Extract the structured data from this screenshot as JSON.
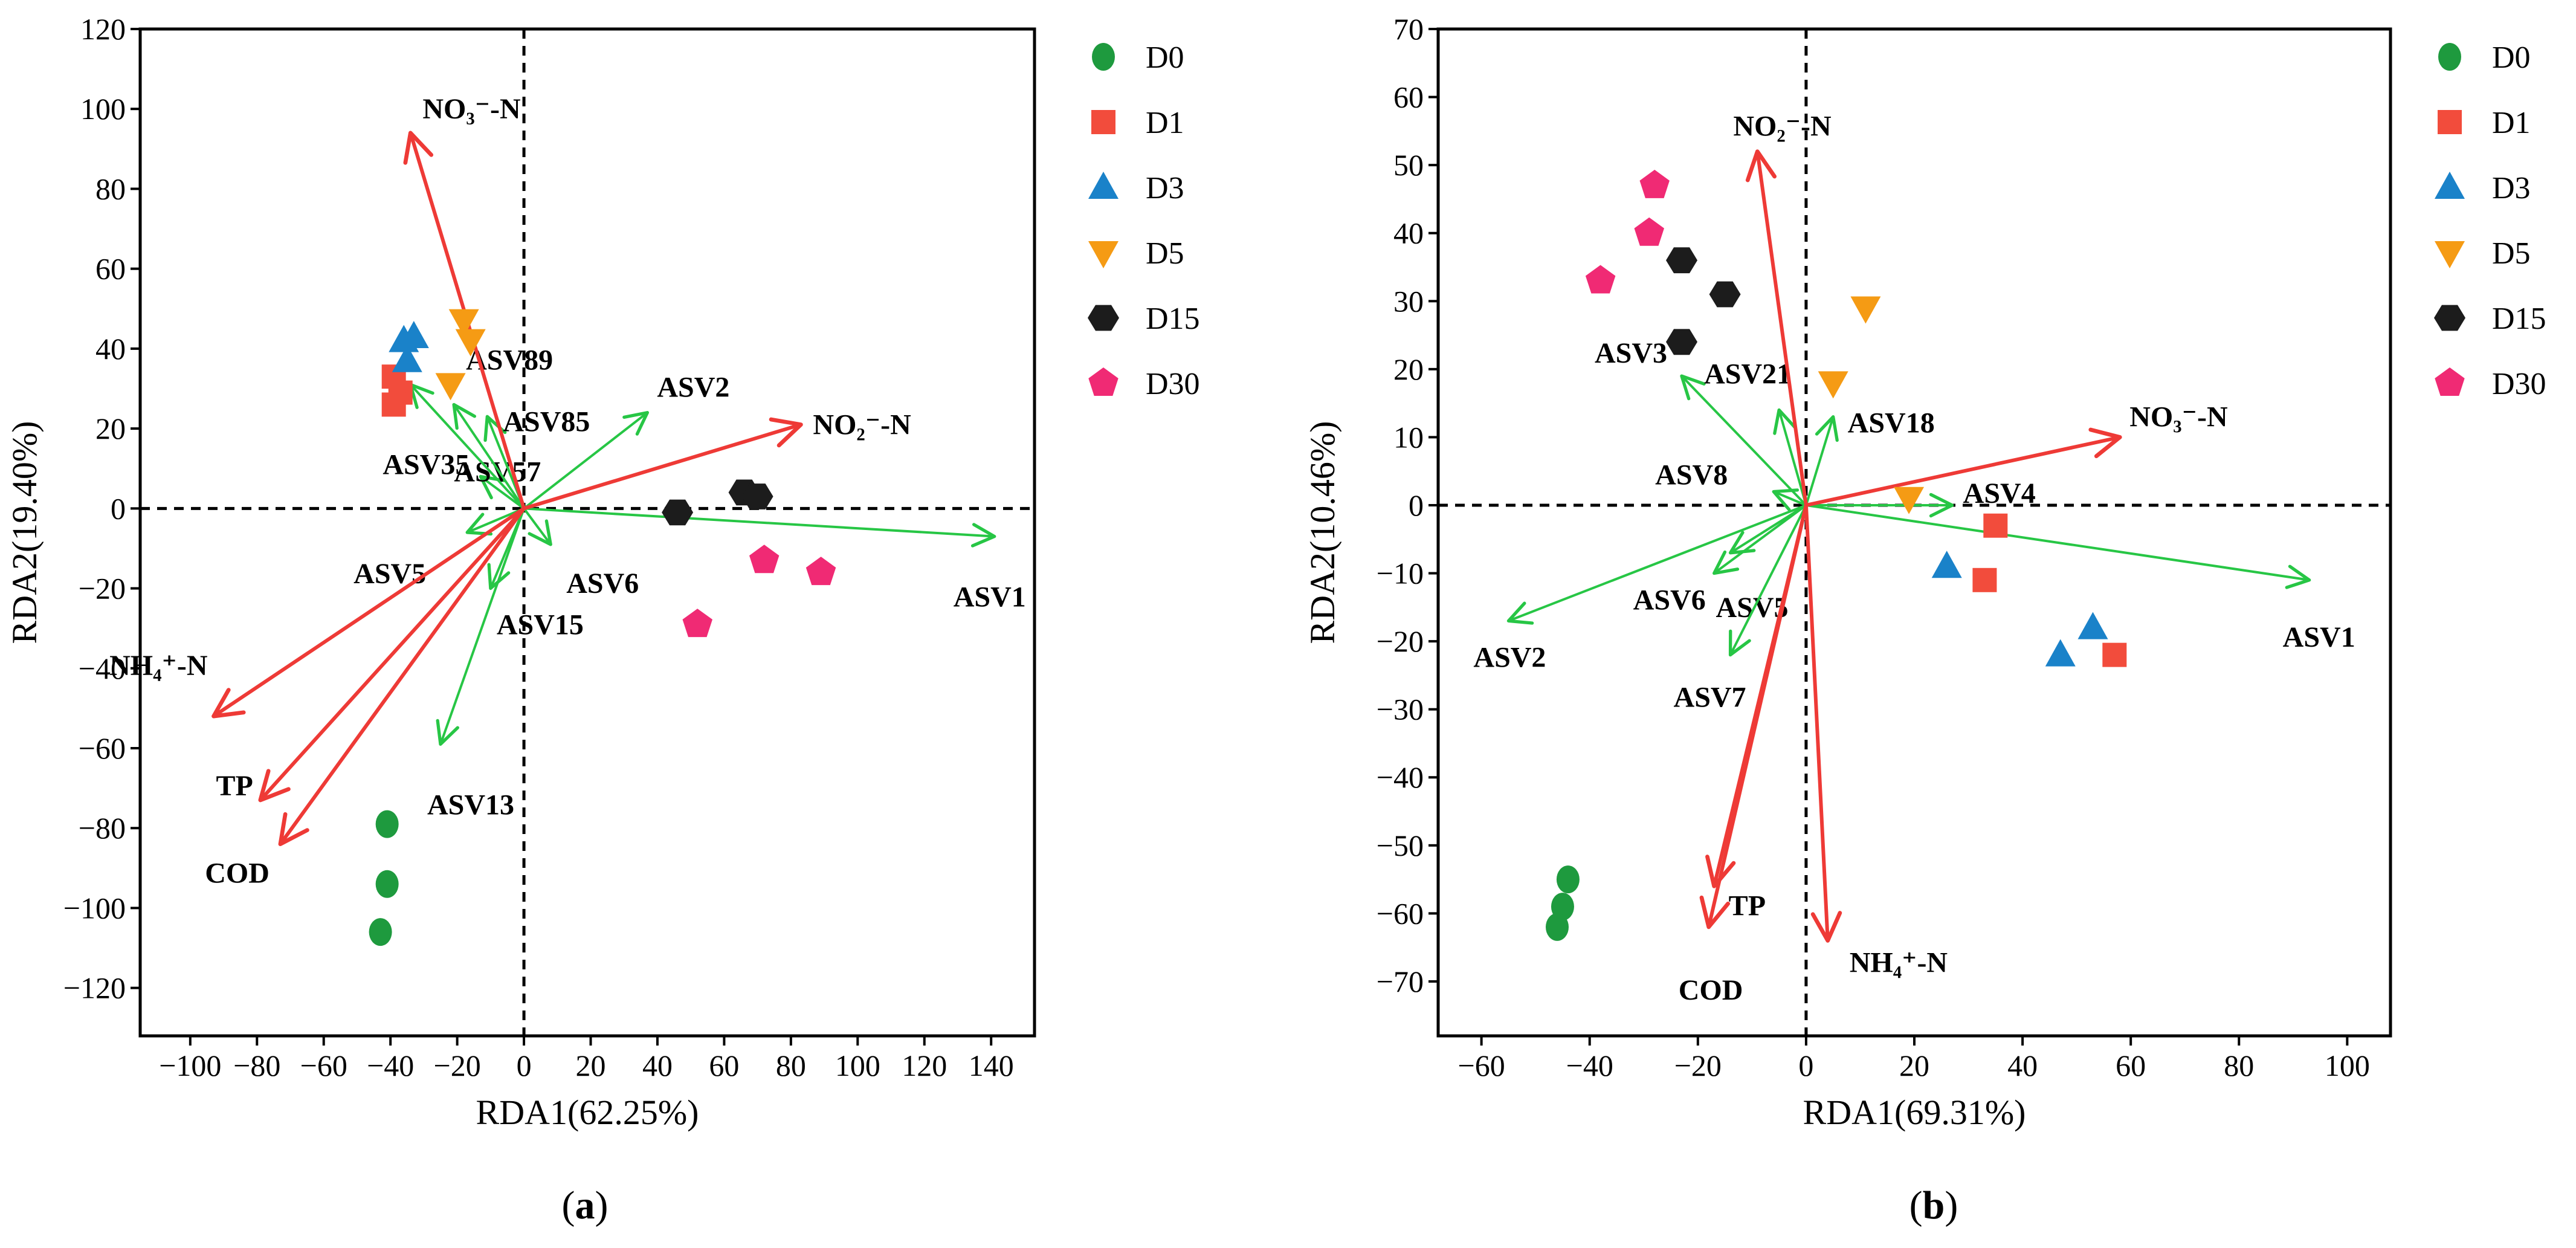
{
  "chart_data": [
    {
      "type": "scatter",
      "subtype": "rda-biplot",
      "panel_label": "(a)",
      "xlabel": "RDA1(62.25%)",
      "ylabel": "RDA2(19.40%)",
      "xlim": [
        -115,
        153
      ],
      "ylim": [
        -132,
        120
      ],
      "xticks": [
        -100,
        -80,
        -60,
        -40,
        -20,
        0,
        20,
        40,
        60,
        80,
        100,
        120,
        140
      ],
      "yticks": [
        -120,
        -100,
        -80,
        -60,
        -40,
        -20,
        0,
        20,
        40,
        60,
        80,
        100,
        120
      ],
      "xtick_labels": [
        "−100",
        "−80",
        "−60",
        "−40",
        "−20",
        "0",
        "20",
        "40",
        "60",
        "80",
        "100",
        "120",
        "140"
      ],
      "ytick_labels": [
        "−120",
        "−100",
        "−80",
        "−60",
        "−40",
        "−20",
        "0",
        "20",
        "40",
        "60",
        "80",
        "100",
        "120"
      ],
      "legend": [
        "D0",
        "D1",
        "D3",
        "D5",
        "D15",
        "D30"
      ],
      "samples": [
        {
          "group": "D0",
          "points": [
            [
              -41,
              -79
            ],
            [
              -41,
              -94
            ],
            [
              -43,
              -106
            ]
          ]
        },
        {
          "group": "D1",
          "points": [
            [
              -39,
              33
            ],
            [
              -37,
              29
            ],
            [
              -39,
              26
            ]
          ]
        },
        {
          "group": "D3",
          "points": [
            [
              -33,
              43
            ],
            [
              -35,
              37
            ],
            [
              -36,
              42
            ]
          ]
        },
        {
          "group": "D5",
          "points": [
            [
              -18,
              47
            ],
            [
              -16,
              42
            ],
            [
              -22,
              31
            ]
          ]
        },
        {
          "group": "D15",
          "points": [
            [
              46,
              -1
            ],
            [
              66,
              4
            ],
            [
              70,
              3
            ]
          ]
        },
        {
          "group": "D30",
          "points": [
            [
              72,
              -13
            ],
            [
              89,
              -16
            ],
            [
              52,
              -29
            ]
          ]
        }
      ],
      "env_vectors": [
        {
          "label": "NO₃⁻-N",
          "x": -34,
          "y": 94
        },
        {
          "label": "NO₂⁻-N",
          "x": 83,
          "y": 21
        },
        {
          "label": "NH₄⁺-N",
          "x": -93,
          "y": -52
        },
        {
          "label": "TP",
          "x": -79,
          "y": -73
        },
        {
          "label": "COD",
          "x": -73,
          "y": -84
        }
      ],
      "species_vectors": [
        {
          "label": "ASV1",
          "x": 141,
          "y": -7
        },
        {
          "label": "ASV2",
          "x": 37,
          "y": 24
        },
        {
          "label": "ASV6",
          "x": 8,
          "y": -9
        },
        {
          "label": "ASV15",
          "x": -10,
          "y": -20
        },
        {
          "label": "ASV13",
          "x": -25,
          "y": -59
        },
        {
          "label": "ASV5",
          "x": -17,
          "y": -6
        },
        {
          "label": "ASV57",
          "x": -13,
          "y": 8
        },
        {
          "label": "ASV35",
          "x": -34,
          "y": 31
        },
        {
          "label": "ASV89",
          "x": -21,
          "y": 26
        },
        {
          "label": "ASV85",
          "x": -11,
          "y": 23
        }
      ]
    },
    {
      "type": "scatter",
      "subtype": "rda-biplot",
      "panel_label": "(b)",
      "xlabel": "RDA1(69.31%)",
      "ylabel": "RDA2(10.46%)",
      "xlim": [
        -68,
        108
      ],
      "ylim": [
        -78,
        70
      ],
      "xticks": [
        -60,
        -40,
        -20,
        0,
        20,
        40,
        60,
        80,
        100
      ],
      "yticks": [
        -70,
        -60,
        -50,
        -40,
        -30,
        -20,
        -10,
        0,
        10,
        20,
        30,
        40,
        50,
        60,
        70
      ],
      "xtick_labels": [
        "−60",
        "−40",
        "−20",
        "0",
        "20",
        "40",
        "60",
        "80",
        "100"
      ],
      "ytick_labels": [
        "−70",
        "−60",
        "−50",
        "−40",
        "−30",
        "−20",
        "−10",
        "0",
        "10",
        "20",
        "30",
        "40",
        "50",
        "60",
        "70"
      ],
      "legend": [
        "D0",
        "D1",
        "D3",
        "D5",
        "D15",
        "D30"
      ],
      "samples": [
        {
          "group": "D0",
          "points": [
            [
              -44,
              -55
            ],
            [
              -45,
              -59
            ],
            [
              -46,
              -62
            ]
          ]
        },
        {
          "group": "D1",
          "points": [
            [
              35,
              -3
            ],
            [
              33,
              -11
            ],
            [
              57,
              -22
            ]
          ]
        },
        {
          "group": "D3",
          "points": [
            [
              26,
              -9
            ],
            [
              53,
              -18
            ],
            [
              47,
              -22
            ]
          ]
        },
        {
          "group": "D5",
          "points": [
            [
              11,
              29
            ],
            [
              5,
              18
            ],
            [
              19,
              1
            ]
          ]
        },
        {
          "group": "D15",
          "points": [
            [
              -23,
              36
            ],
            [
              -15,
              31
            ],
            [
              -23,
              24
            ]
          ]
        },
        {
          "group": "D30",
          "points": [
            [
              -28,
              47
            ],
            [
              -29,
              40
            ],
            [
              -38,
              33
            ]
          ]
        }
      ],
      "env_vectors": [
        {
          "label": "NO₂⁻-N",
          "x": -9,
          "y": 52
        },
        {
          "label": "NO₃⁻-N",
          "x": 58,
          "y": 10
        },
        {
          "label": "TP",
          "x": -17,
          "y": -56
        },
        {
          "label": "COD",
          "x": -18,
          "y": -62
        },
        {
          "label": "NH₄⁺-N",
          "x": 4,
          "y": -64
        }
      ],
      "species_vectors": [
        {
          "label": "ASV1",
          "x": 93,
          "y": -11
        },
        {
          "label": "ASV2",
          "x": -55,
          "y": -17
        },
        {
          "label": "ASV3",
          "x": -23,
          "y": 19
        },
        {
          "label": "ASV21",
          "x": -5,
          "y": 14
        },
        {
          "label": "ASV18",
          "x": 5,
          "y": 13
        },
        {
          "label": "ASV4",
          "x": 27,
          "y": 0
        },
        {
          "label": "ASV8",
          "x": -6,
          "y": 2
        },
        {
          "label": "ASV6",
          "x": -17,
          "y": -10
        },
        {
          "label": "ASV5",
          "x": -14,
          "y": -7
        },
        {
          "label": "ASV7",
          "x": -14,
          "y": -22
        }
      ]
    }
  ],
  "colors": {
    "D0": "#1e9a3e",
    "D1": "#f24c3c",
    "D3": "#1a82c9",
    "D5": "#f59b14",
    "D15": "#1c1c1c",
    "D30": "#f02a74",
    "env_arrow": "#ee3a36",
    "species_arrow": "#27c645"
  }
}
